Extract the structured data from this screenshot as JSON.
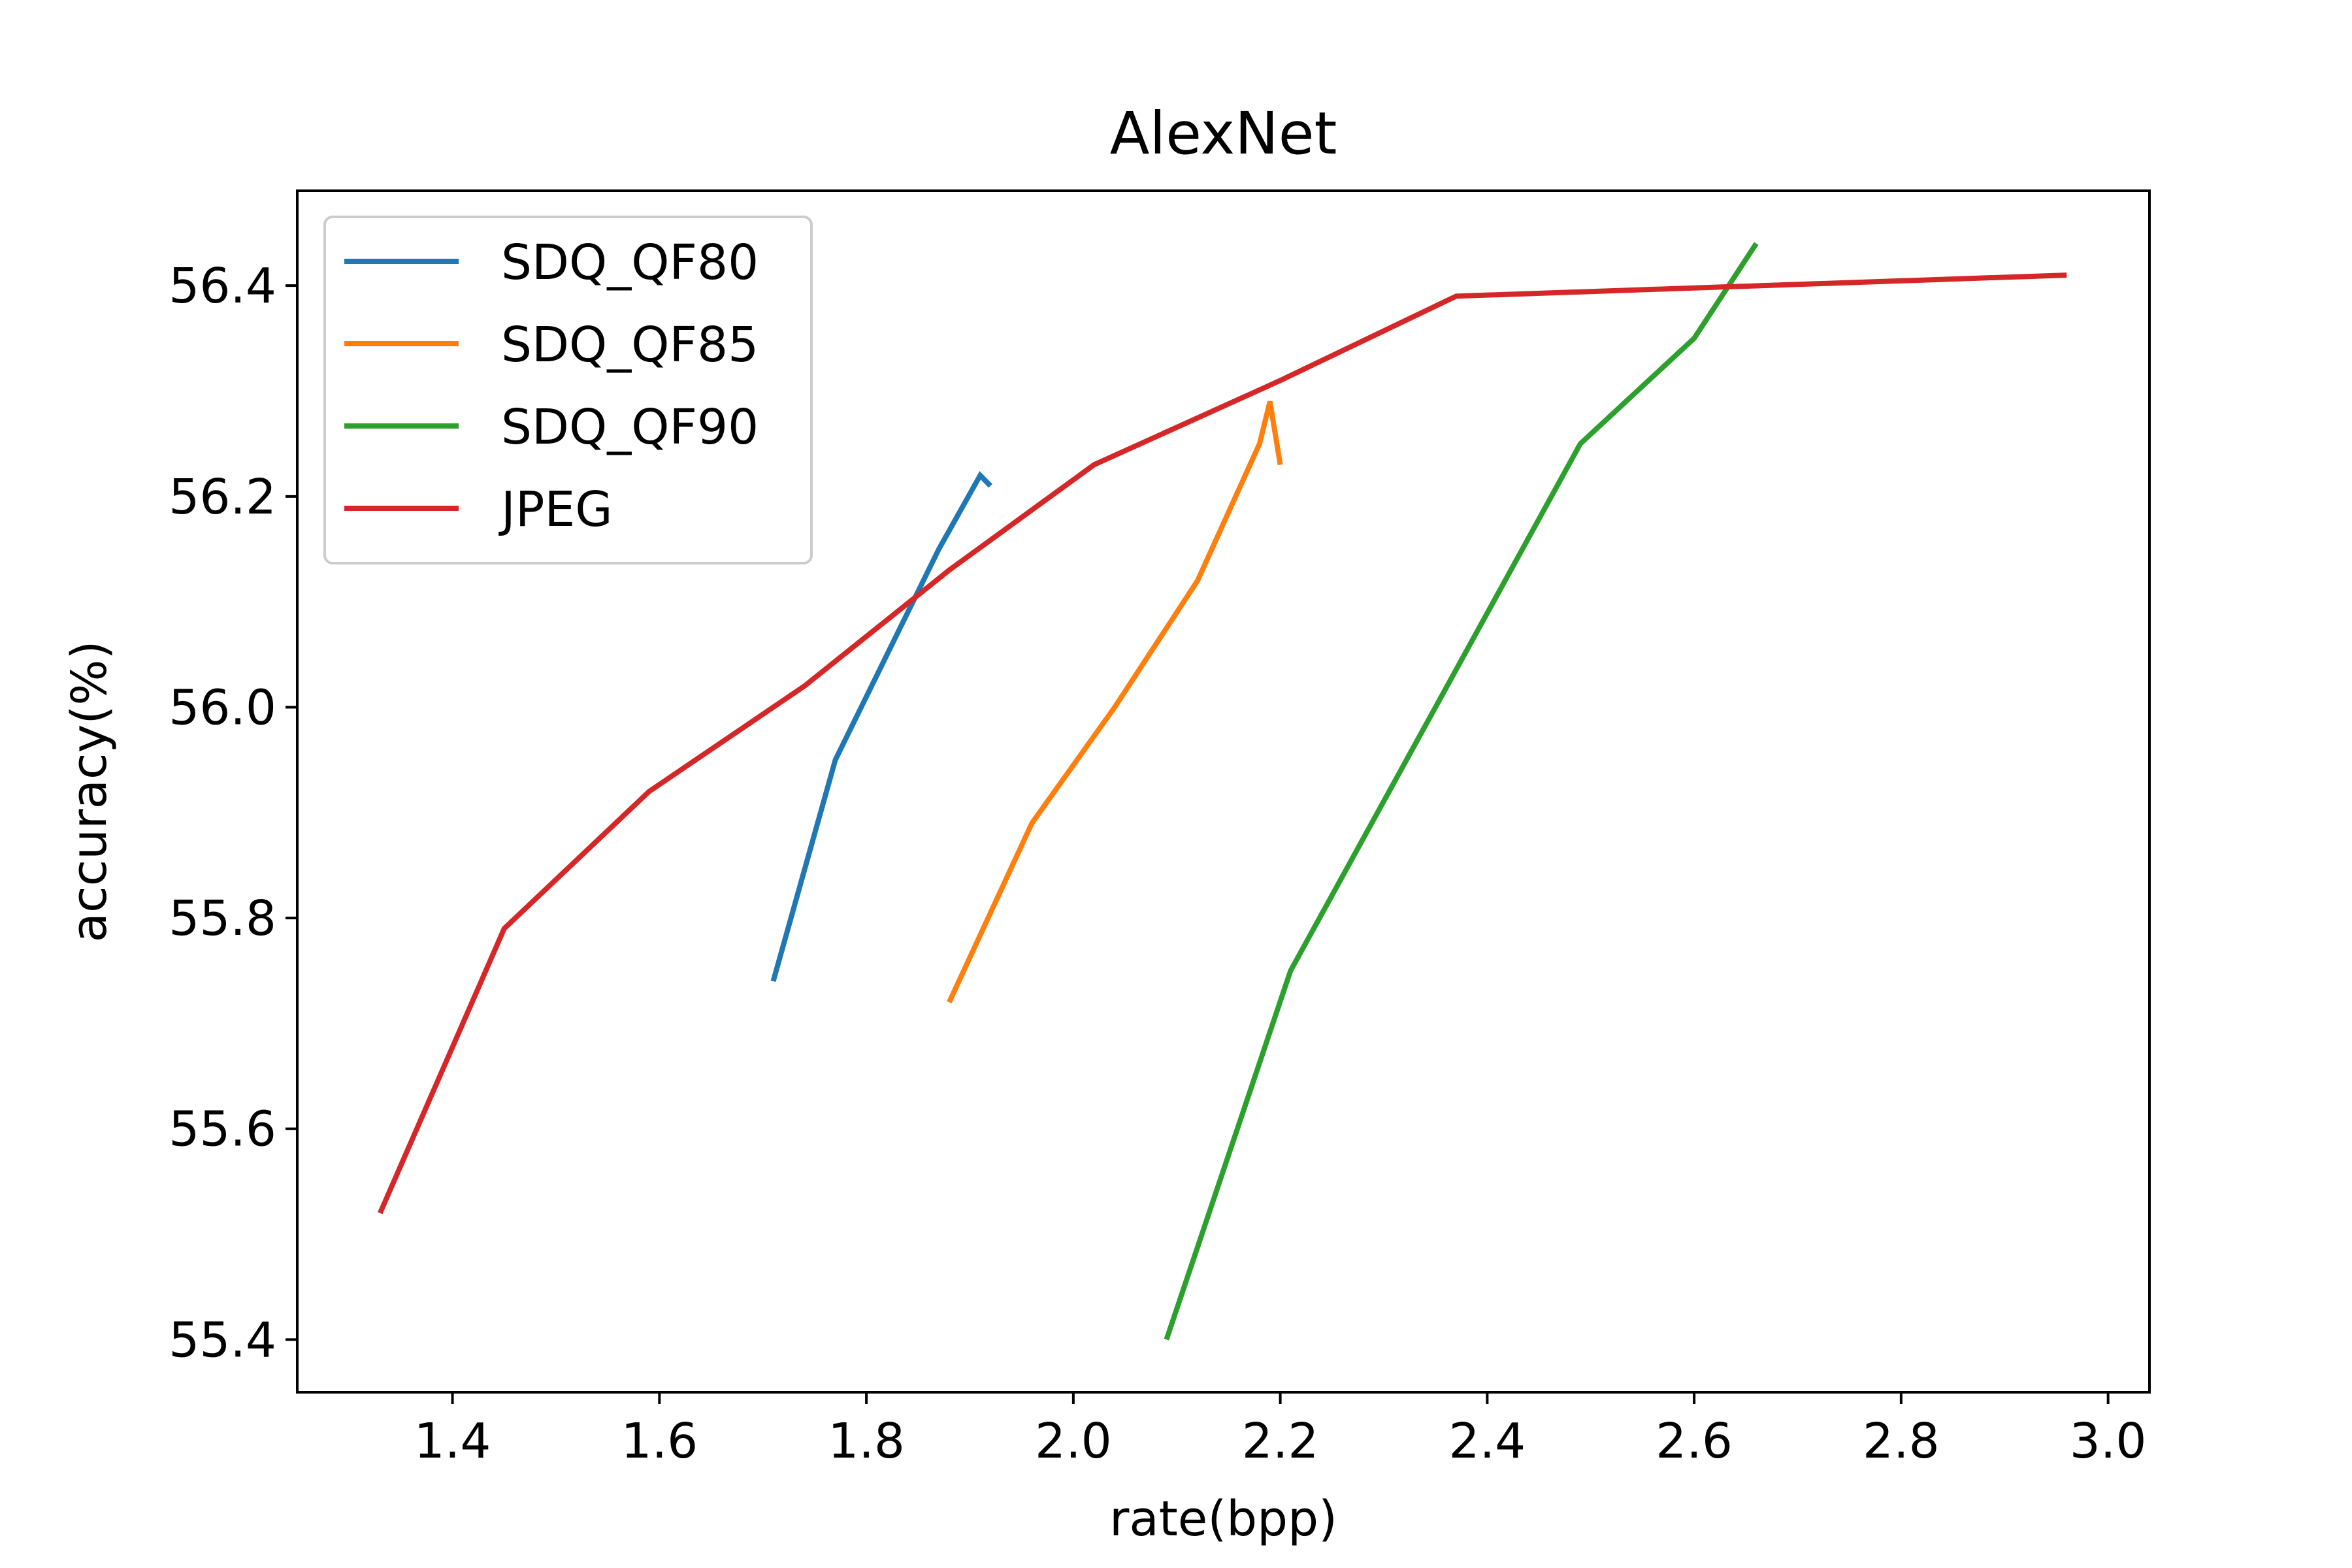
{
  "chart_data": {
    "type": "line",
    "title": "AlexNet",
    "xlabel": "rate(bpp)",
    "ylabel": "accuracy(%)",
    "xlim": [
      1.25,
      3.04
    ],
    "ylim": [
      55.35,
      56.49
    ],
    "xticks": [
      "1.4",
      "1.6",
      "1.8",
      "2.0",
      "2.2",
      "2.4",
      "2.6",
      "2.8",
      "3.0"
    ],
    "yticks": [
      "55.4",
      "55.6",
      "55.8",
      "56.0",
      "56.2",
      "56.4"
    ],
    "grid": false,
    "legend_position": "top-left",
    "series": [
      {
        "name": "SDQ_QF80",
        "color": "#1f77b4",
        "points": [
          [
            1.71,
            55.74
          ],
          [
            1.77,
            55.95
          ],
          [
            1.83,
            56.07
          ],
          [
            1.87,
            56.15
          ],
          [
            1.91,
            56.22
          ],
          [
            1.92,
            56.21
          ]
        ]
      },
      {
        "name": "SDQ_QF85",
        "color": "#ff7f0e",
        "points": [
          [
            1.88,
            55.72
          ],
          [
            1.96,
            55.89
          ],
          [
            2.04,
            56.0
          ],
          [
            2.12,
            56.12
          ],
          [
            2.18,
            56.25
          ],
          [
            2.19,
            56.29
          ],
          [
            2.2,
            56.23
          ]
        ]
      },
      {
        "name": "SDQ_QF90",
        "color": "#2ca02c",
        "points": [
          [
            2.09,
            55.4
          ],
          [
            2.21,
            55.75
          ],
          [
            2.35,
            56.0
          ],
          [
            2.49,
            56.25
          ],
          [
            2.6,
            56.35
          ],
          [
            2.66,
            56.44
          ]
        ]
      },
      {
        "name": "JPEG",
        "color": "#d62728",
        "points": [
          [
            1.33,
            55.52
          ],
          [
            1.45,
            55.79
          ],
          [
            1.59,
            55.92
          ],
          [
            1.74,
            56.02
          ],
          [
            1.88,
            56.13
          ],
          [
            2.02,
            56.23
          ],
          [
            2.2,
            56.31
          ],
          [
            2.37,
            56.39
          ],
          [
            2.96,
            56.41
          ]
        ]
      }
    ]
  }
}
